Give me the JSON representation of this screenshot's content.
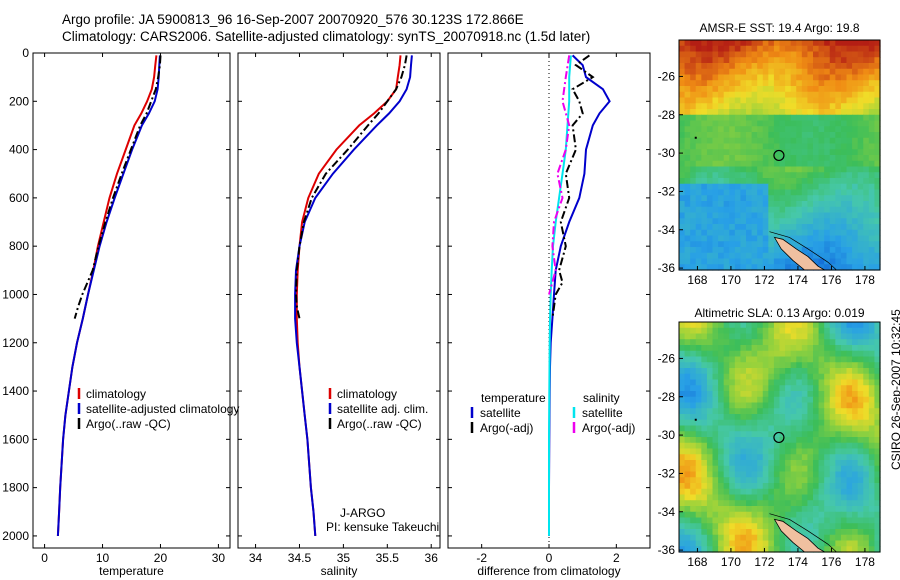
{
  "header": {
    "line1": "Argo profile: JA 5900813_96 16-Sep-2007 20070920_576 30.123S 172.866E",
    "line2": "Climatology: CARS2006. Satellite-adjusted climatology: synTS_20070918.nc (1.5d later)"
  },
  "stamp": "CSIRO 26-Sep-2007 10:32:45",
  "colors": {
    "climatology": "#dd0000",
    "satellite": "#0000cc",
    "argo": "#000000",
    "salinity_sat": "#00e5ee",
    "salinity_argo": "#ee00ee"
  },
  "chart_data": [
    {
      "type": "line",
      "xlabel": "temperature",
      "xlim": [
        -2,
        32
      ],
      "xticks": [
        0,
        10,
        20,
        30
      ],
      "ylim": [
        2050,
        0
      ],
      "yticks": [
        0,
        200,
        400,
        600,
        800,
        1000,
        1200,
        1400,
        1600,
        1800,
        2000
      ],
      "legend": {
        "position": "center-right",
        "entries": [
          "climatology",
          "satellite-adjusted climatology",
          "Argo(..raw -QC)"
        ]
      },
      "series": [
        {
          "name": "climatology",
          "color": "#dd0000",
          "style": "solid",
          "x": [
            19.3,
            19.1,
            18.9,
            18.5,
            17.7,
            16.7,
            15.5,
            14.0,
            12.5,
            11.2,
            10.2,
            9.2,
            8.4,
            7.5,
            6.6,
            5.6,
            4.8,
            4.2,
            3.6,
            3.2,
            2.7,
            2.5,
            2.3
          ],
          "y": [
            10,
            50,
            100,
            150,
            200,
            250,
            300,
            400,
            500,
            600,
            700,
            800,
            900,
            1000,
            1100,
            1200,
            1300,
            1400,
            1500,
            1600,
            1800,
            1900,
            2000
          ]
        },
        {
          "name": "satellite-adjusted climatology",
          "color": "#0000cc",
          "style": "solid",
          "x": [
            19.9,
            19.8,
            19.7,
            19.5,
            19.0,
            18.0,
            16.8,
            15.1,
            13.6,
            12.1,
            10.7,
            9.5,
            8.5,
            7.5,
            6.6,
            5.6,
            4.8,
            4.2,
            3.6,
            3.2,
            2.7,
            2.5,
            2.3
          ],
          "y": [
            10,
            50,
            100,
            150,
            200,
            250,
            300,
            400,
            500,
            600,
            700,
            800,
            900,
            1000,
            1100,
            1200,
            1300,
            1400,
            1500,
            1600,
            1800,
            1900,
            2000
          ]
        },
        {
          "name": "Argo(..raw -QC)",
          "color": "#000000",
          "style": "dashed",
          "x": [
            20.0,
            19.9,
            19.6,
            19.2,
            18.4,
            17.6,
            16.5,
            14.9,
            13.3,
            11.8,
            10.5,
            9.3,
            8.3,
            7.4,
            6.5,
            5.8,
            5.2
          ],
          "y": [
            10,
            50,
            100,
            150,
            200,
            250,
            300,
            400,
            500,
            600,
            700,
            800,
            900,
            950,
            1000,
            1050,
            1100
          ]
        }
      ]
    },
    {
      "type": "line",
      "xlabel": "salinity",
      "xlim": [
        33.8,
        36.1
      ],
      "xticks": [
        34,
        34.5,
        35,
        35.5,
        36
      ],
      "ylim": [
        2050,
        0
      ],
      "legend": {
        "position": "center-right",
        "entries": [
          "climatology",
          "satellite adj. clim.",
          "Argo(..raw -QC)"
        ]
      },
      "annotations": [
        "J-ARGO",
        "PI: kensuke Takeuchi"
      ],
      "series": [
        {
          "name": "climatology",
          "color": "#dd0000",
          "style": "solid",
          "x": [
            35.65,
            35.64,
            35.62,
            35.6,
            35.5,
            35.35,
            35.18,
            34.92,
            34.72,
            34.6,
            34.53,
            34.5,
            34.48,
            34.47,
            34.47,
            34.48,
            34.5,
            34.53,
            34.56,
            34.59,
            34.63,
            34.66,
            34.68
          ],
          "y": [
            10,
            50,
            100,
            150,
            200,
            250,
            300,
            400,
            500,
            600,
            700,
            800,
            900,
            1000,
            1100,
            1200,
            1300,
            1400,
            1500,
            1600,
            1800,
            1900,
            2000
          ]
        },
        {
          "name": "satellite adj. clim.",
          "color": "#0000cc",
          "style": "solid",
          "x": [
            35.78,
            35.77,
            35.76,
            35.72,
            35.64,
            35.52,
            35.38,
            35.12,
            34.88,
            34.68,
            34.56,
            34.5,
            34.46,
            34.45,
            34.45,
            34.47,
            34.5,
            34.53,
            34.56,
            34.59,
            34.63,
            34.66,
            34.68
          ],
          "y": [
            10,
            50,
            100,
            150,
            200,
            250,
            300,
            400,
            500,
            600,
            700,
            800,
            900,
            1000,
            1100,
            1200,
            1300,
            1400,
            1500,
            1600,
            1800,
            1900,
            2000
          ]
        },
        {
          "name": "Argo(..raw -QC)",
          "color": "#000000",
          "style": "dashed",
          "x": [
            35.72,
            35.7,
            35.66,
            35.6,
            35.5,
            35.4,
            35.28,
            35.05,
            34.8,
            34.64,
            34.55,
            34.5,
            34.47,
            34.46,
            34.47,
            34.5
          ],
          "y": [
            10,
            50,
            100,
            150,
            200,
            250,
            300,
            400,
            500,
            600,
            700,
            800,
            900,
            1000,
            1050,
            1100
          ]
        }
      ]
    },
    {
      "type": "line",
      "xlabel": "difference from climatology",
      "xlim": [
        -3,
        3
      ],
      "xticks": [
        -2,
        0,
        2
      ],
      "ylim": [
        2050,
        0
      ],
      "legend": {
        "position": "center",
        "entries": [
          "temperature",
          "satellite",
          "Argo(-adj)",
          "salinity",
          "satellite",
          "Argo(-adj)"
        ]
      },
      "series": [
        {
          "name": "temperature satellite",
          "color": "#0000cc",
          "style": "solid",
          "x": [
            0.7,
            1.0,
            1.1,
            1.6,
            1.8,
            1.5,
            1.3,
            1.1,
            1.05,
            0.9,
            0.6,
            0.35,
            0.2,
            0.15,
            0.1,
            0.05,
            0.03,
            0.02,
            0.01,
            0.0,
            0.0
          ],
          "y": [
            10,
            50,
            100,
            150,
            200,
            250,
            300,
            400,
            500,
            600,
            700,
            800,
            900,
            1000,
            1100,
            1200,
            1300,
            1400,
            1600,
            1800,
            2000
          ]
        },
        {
          "name": "temperature Argo(-adj)",
          "color": "#000000",
          "style": "dashed",
          "x": [
            1.2,
            0.8,
            1.3,
            0.7,
            0.9,
            1.0,
            0.7,
            0.8,
            0.5,
            0.6,
            0.35,
            0.5,
            0.3,
            0.4,
            0.2,
            0.1
          ],
          "y": [
            10,
            50,
            100,
            150,
            200,
            250,
            300,
            400,
            500,
            600,
            700,
            800,
            900,
            950,
            1000,
            1100
          ]
        },
        {
          "name": "salinity satellite",
          "color": "#00e5ee",
          "style": "solid",
          "x": [
            0.65,
            0.6,
            0.6,
            0.55,
            0.5,
            0.4,
            0.3,
            0.2,
            0.12,
            0.08,
            0.05,
            0.03,
            0.02,
            0.01,
            0.0,
            0.0,
            0.0
          ],
          "y": [
            10,
            100,
            200,
            300,
            400,
            500,
            600,
            700,
            800,
            900,
            1000,
            1100,
            1200,
            1400,
            1600,
            1800,
            2000
          ]
        },
        {
          "name": "salinity Argo(-adj)",
          "color": "#ee00ee",
          "style": "dashed",
          "x": [
            0.6,
            0.5,
            0.4,
            0.6,
            0.5,
            0.25,
            0.4,
            0.15,
            0.1,
            0.2,
            0.0
          ],
          "y": [
            10,
            100,
            200,
            300,
            400,
            500,
            600,
            700,
            800,
            900,
            1000
          ]
        }
      ]
    },
    {
      "type": "heatmap",
      "title": "AMSR-E SST: 19.4 Argo: 19.8",
      "xlim": [
        166.9,
        178.9
      ],
      "ylim": [
        -36.1,
        -24.1
      ],
      "xticks": [
        168,
        170,
        172,
        174,
        176,
        178
      ],
      "yticks": [
        -26,
        -28,
        -30,
        -32,
        -34,
        -36
      ],
      "marker": {
        "lon": 172.866,
        "lat": -30.123
      }
    },
    {
      "type": "heatmap",
      "title": "Altimetric SLA: 0.13 Argo: 0.019",
      "xlim": [
        166.9,
        178.9
      ],
      "ylim": [
        -36.1,
        -24.1
      ],
      "xticks": [
        168,
        170,
        172,
        174,
        176,
        178
      ],
      "yticks": [
        -26,
        -28,
        -30,
        -32,
        -34,
        -36
      ],
      "marker": {
        "lon": 172.866,
        "lat": -30.123
      }
    }
  ]
}
